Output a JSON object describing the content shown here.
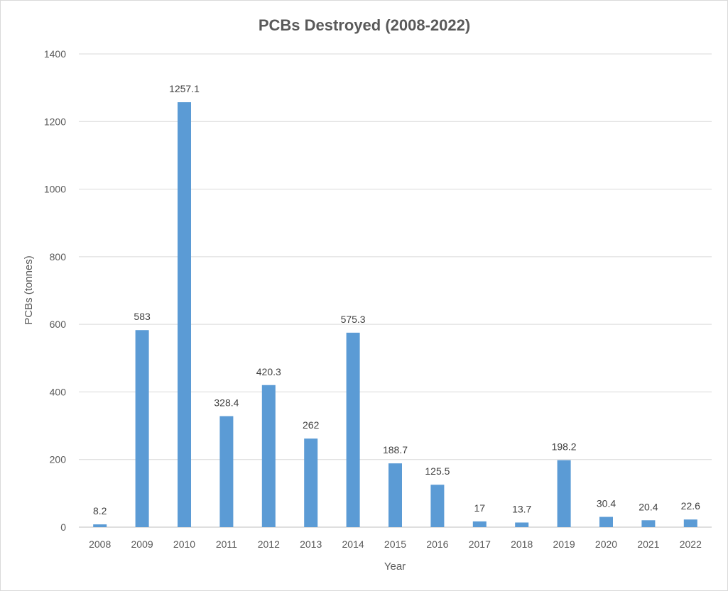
{
  "chart_data": {
    "type": "bar",
    "title": "PCBs Destroyed (2008-2022)",
    "xlabel": "Year",
    "ylabel": "PCBs (tonnes)",
    "categories": [
      "2008",
      "2009",
      "2010",
      "2011",
      "2012",
      "2013",
      "2014",
      "2015",
      "2016",
      "2017",
      "2018",
      "2019",
      "2020",
      "2021",
      "2022"
    ],
    "values": [
      8.2,
      583,
      1257.1,
      328.4,
      420.3,
      262,
      575.3,
      188.7,
      125.5,
      17,
      13.7,
      198.2,
      30.4,
      20.4,
      22.6
    ],
    "data_labels": [
      "8.2",
      "583",
      "1257.1",
      "328.4",
      "420.3",
      "262",
      "575.3",
      "188.7",
      "125.5",
      "17",
      "13.7",
      "198.2",
      "30.4",
      "20.4",
      "22.6"
    ],
    "ylim": [
      0,
      1400
    ],
    "yticks": [
      "0",
      "200",
      "400",
      "600",
      "800",
      "1000",
      "1200",
      "1400"
    ],
    "grid": true,
    "legend": "none",
    "bar_color": "#5b9bd5"
  }
}
